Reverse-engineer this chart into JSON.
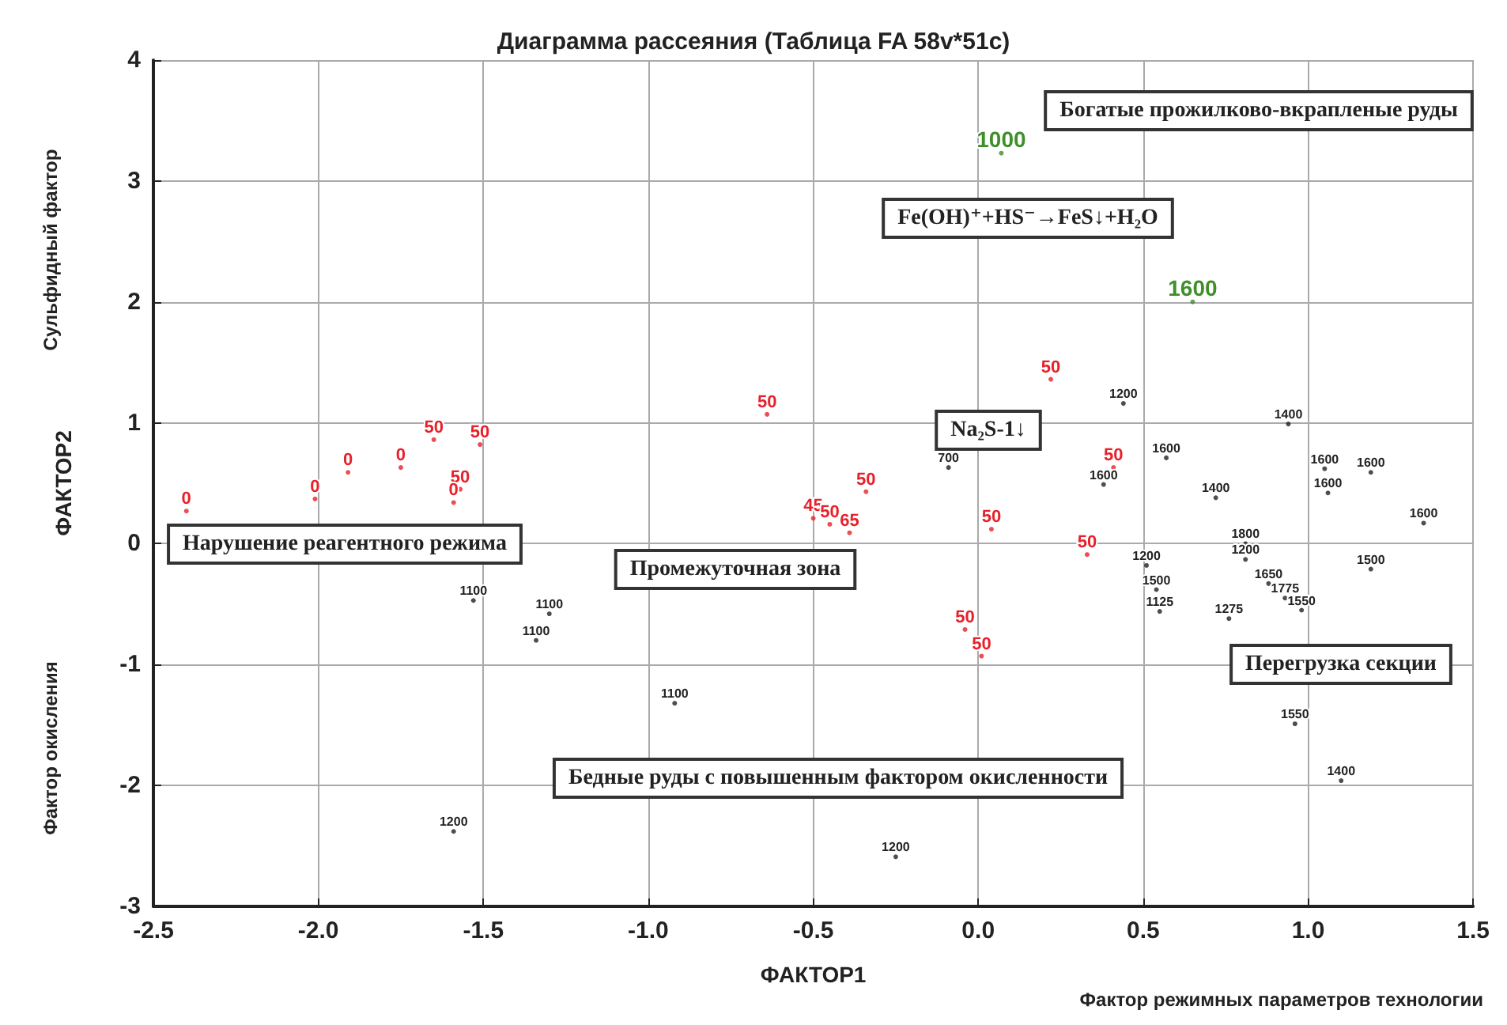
{
  "chart_data": {
    "type": "scatter",
    "title": "Диаграмма рассеяния (Таблица FA 58v*51c)",
    "xlabel": "ФАКТОР1",
    "ylabel": "ФАКТОР2",
    "xlim": [
      -2.5,
      1.5
    ],
    "xticks": [
      -2.5,
      {
        "value": -2,
        "label": "-2.0"
      },
      -1.5,
      {
        "value": -1,
        "label": "-1.0"
      },
      -0.5,
      {
        "value": 0,
        "label": "0.0"
      },
      0.5,
      {
        "value": 1,
        "label": "1.0"
      },
      1.5
    ],
    "ylim": [
      -3,
      4
    ],
    "yticks": [
      -3,
      -2,
      -1,
      0,
      1,
      2,
      3,
      4
    ],
    "grid": true,
    "marker": "circle",
    "series": [
      {
        "color": "#e8202a",
        "x": [
          -2.4,
          -2.01,
          -1.91,
          -1.75,
          -1.65,
          -1.51,
          -1.57,
          -1.59,
          -0.64,
          0.22,
          0.41,
          -0.34,
          -0.5,
          -0.45,
          -0.39,
          0.04,
          0.33,
          -0.04,
          0.01
        ],
        "values": [
          0.27,
          0.37,
          0.59,
          0.63,
          0.86,
          0.82,
          0.45,
          0.34,
          1.07,
          1.36,
          0.63,
          0.43,
          0.21,
          0.16,
          0.09,
          0.12,
          -0.09,
          -0.71,
          -0.93
        ]
      },
      {
        "color": "#222222",
        "x": [
          -1.53,
          -1.3,
          -1.34,
          0.44,
          -0.09,
          0.38,
          0.94,
          0.57,
          1.05,
          1.19,
          1.06,
          0.72,
          1.35,
          0.81,
          0.81,
          0.51,
          1.19,
          0.54,
          0.88,
          0.93,
          0.98,
          0.55,
          0.76,
          0.96,
          1.1,
          -0.92,
          -1.59,
          -0.25
        ],
        "values": [
          -0.47,
          -0.58,
          -0.8,
          1.16,
          0.63,
          0.49,
          0.99,
          0.71,
          0.62,
          0.59,
          0.42,
          0.38,
          0.17,
          0.0,
          -0.13,
          -0.18,
          -0.21,
          -0.38,
          -0.33,
          -0.45,
          -0.55,
          -0.56,
          -0.62,
          -1.49,
          -1.96,
          -1.32,
          -2.38,
          -2.59
        ]
      },
      {
        "color": "#3f8f2a",
        "x": [
          0.07,
          0.65
        ],
        "values": [
          3.23,
          2.0
        ]
      }
    ],
    "annotations": [
      "Богатые прожилково-вкрапленые руды",
      "Fe(OH)⁺+HS⁻→FeS↓+H₂O",
      "Na₂S-1↓",
      "Нарушение реагентного режима",
      "Промежуточная зона",
      "Перегрузка секции",
      "Бедные руды с повышенным фактором окисленности",
      "Сульфидный фактор",
      "Фактор окисления",
      "Фактор режимных параметров технологии",
      {
        "text": "0",
        "x": -2.4,
        "y": 0.27
      },
      {
        "text": "0",
        "x": -2.01,
        "y": 0.37
      },
      {
        "text": "0",
        "x": -1.91,
        "y": 0.59
      },
      {
        "text": "0",
        "x": -1.75,
        "y": 0.63
      },
      {
        "text": "50",
        "x": -1.65,
        "y": 0.86
      },
      {
        "text": "50",
        "x": -1.51,
        "y": 0.82
      },
      {
        "text": "50",
        "x": -1.57,
        "y": 0.45
      },
      {
        "text": "0",
        "x": -1.59,
        "y": 0.34
      },
      {
        "text": "50",
        "x": -0.64,
        "y": 1.07
      },
      {
        "text": "50",
        "x": 0.22,
        "y": 1.36
      },
      {
        "text": "50",
        "x": 0.41,
        "y": 0.63
      },
      {
        "text": "50",
        "x": -0.34,
        "y": 0.43
      },
      {
        "text": "45",
        "x": -0.5,
        "y": 0.21
      },
      {
        "text": "50",
        "x": -0.45,
        "y": 0.16
      },
      {
        "text": "65",
        "x": -0.39,
        "y": 0.09
      },
      {
        "text": "50",
        "x": 0.04,
        "y": 0.12
      },
      {
        "text": "50",
        "x": 0.33,
        "y": -0.09
      },
      {
        "text": "50",
        "x": -0.04,
        "y": -0.71
      },
      {
        "text": "50",
        "x": 0.01,
        "y": -0.93
      },
      {
        "text": "1100",
        "x": -1.53,
        "y": -0.47
      },
      {
        "text": "1100",
        "x": -1.3,
        "y": -0.58
      },
      {
        "text": "1100",
        "x": -1.34,
        "y": -0.8
      },
      {
        "text": "1200",
        "x": 0.44,
        "y": 1.16
      },
      {
        "text": "700",
        "x": -0.09,
        "y": 0.63
      },
      {
        "text": "1600",
        "x": 0.38,
        "y": 0.49
      },
      {
        "text": "1400",
        "x": 0.94,
        "y": 0.99
      },
      {
        "text": "1600",
        "x": 0.57,
        "y": 0.71
      },
      {
        "text": "1600",
        "x": 1.05,
        "y": 0.62
      },
      {
        "text": "1600",
        "x": 1.19,
        "y": 0.59
      },
      {
        "text": "1600",
        "x": 1.06,
        "y": 0.42
      },
      {
        "text": "1400",
        "x": 0.72,
        "y": 0.38
      },
      {
        "text": "1600",
        "x": 1.35,
        "y": 0.17
      },
      {
        "text": "1800",
        "x": 0.81,
        "y": 0.0
      },
      {
        "text": "1200",
        "x": 0.81,
        "y": -0.13
      },
      {
        "text": "1200",
        "x": 0.51,
        "y": -0.18
      },
      {
        "text": "1500",
        "x": 1.19,
        "y": -0.21
      },
      {
        "text": "1500",
        "x": 0.54,
        "y": -0.38
      },
      {
        "text": "1650",
        "x": 0.88,
        "y": -0.33
      },
      {
        "text": "1775",
        "x": 0.93,
        "y": -0.45
      },
      {
        "text": "1550",
        "x": 0.98,
        "y": -0.55
      },
      {
        "text": "1125",
        "x": 0.55,
        "y": -0.56
      },
      {
        "text": "1275",
        "x": 0.76,
        "y": -0.62
      },
      {
        "text": "1550",
        "x": 0.96,
        "y": -1.49
      },
      {
        "text": "1400",
        "x": 1.1,
        "y": -1.96
      },
      {
        "text": "1100",
        "x": -0.92,
        "y": -1.32
      },
      {
        "text": "1200",
        "x": -1.59,
        "y": -2.38
      },
      {
        "text": "1200",
        "x": -0.25,
        "y": -2.59
      },
      {
        "text": "1000",
        "x": 0.07,
        "y": 3.23
      },
      {
        "text": "1600",
        "x": 0.65,
        "y": 2.0
      }
    ]
  }
}
